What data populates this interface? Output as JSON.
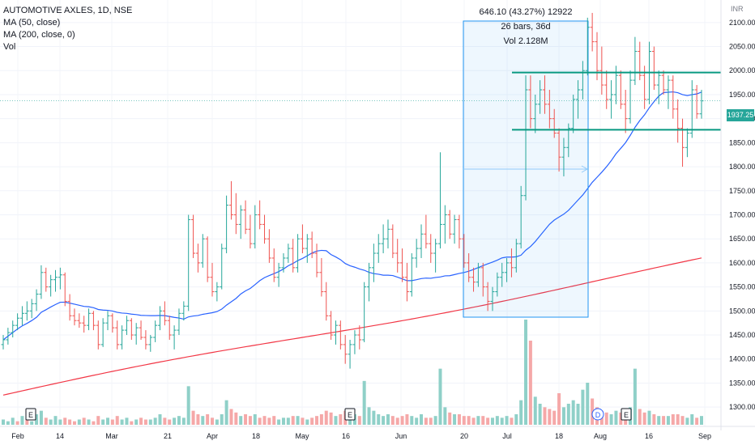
{
  "legend": {
    "symbol": "AUTOMOTIVE AXLES, 1D, NSE",
    "ma50": "MA (50, close)",
    "ma200": "MA (200, close, 0)",
    "vol": "Vol"
  },
  "measure": {
    "line1": "646.10 (43.27%) 12922",
    "line2": "26 bars, 36d",
    "line3": "Vol 2.128M"
  },
  "price_scale": {
    "currency": "INR",
    "last_price": "1937.25",
    "ticks": [
      "2100.00",
      "2050.00",
      "2000.00",
      "1950.00",
      "1900.00",
      "1850.00",
      "1800.00",
      "1750.00",
      "1700.00",
      "1650.00",
      "1600.00",
      "1550.00",
      "1500.00",
      "1450.00",
      "1400.00",
      "1350.00",
      "1300.00"
    ]
  },
  "time_scale": {
    "labels": [
      "Feb",
      "14",
      "Mar",
      "21",
      "Apr",
      "18",
      "May",
      "16",
      "Jun",
      "20",
      "Jul",
      "18",
      "Aug",
      "16",
      "Sep"
    ]
  },
  "markers": [
    "E",
    "E",
    "E",
    "D"
  ],
  "colors": {
    "up": "#26a69a",
    "down": "#ef5350",
    "ma50": "#2962ff",
    "ma200": "#f23645",
    "vol_up": "#8fd0c8",
    "vol_down": "#f5a8a8",
    "hline": "#089981",
    "measure_box": "#2196f3"
  },
  "chart_data": {
    "type": "ohlc",
    "y_range": [
      1275,
      2130
    ],
    "horizontal_lines": [
      1996,
      1877
    ],
    "last_price": 1937.25,
    "ohlc_bars": [
      [
        1430,
        1450,
        1420,
        1440
      ],
      [
        1440,
        1465,
        1430,
        1455
      ],
      [
        1455,
        1480,
        1445,
        1470
      ],
      [
        1470,
        1495,
        1460,
        1485
      ],
      [
        1485,
        1510,
        1470,
        1495
      ],
      [
        1495,
        1520,
        1480,
        1500
      ],
      [
        1500,
        1525,
        1485,
        1515
      ],
      [
        1515,
        1545,
        1500,
        1535
      ],
      [
        1535,
        1595,
        1525,
        1580
      ],
      [
        1580,
        1590,
        1540,
        1550
      ],
      [
        1550,
        1575,
        1530,
        1565
      ],
      [
        1565,
        1585,
        1540,
        1570
      ],
      [
        1570,
        1590,
        1545,
        1575
      ],
      [
        1575,
        1580,
        1510,
        1520
      ],
      [
        1520,
        1535,
        1480,
        1490
      ],
      [
        1490,
        1505,
        1470,
        1480
      ],
      [
        1480,
        1495,
        1465,
        1475
      ],
      [
        1475,
        1490,
        1455,
        1470
      ],
      [
        1470,
        1505,
        1460,
        1495
      ],
      [
        1495,
        1500,
        1460,
        1470
      ],
      [
        1470,
        1480,
        1420,
        1430
      ],
      [
        1430,
        1485,
        1425,
        1475
      ],
      [
        1475,
        1500,
        1460,
        1490
      ],
      [
        1490,
        1495,
        1455,
        1465
      ],
      [
        1465,
        1480,
        1420,
        1430
      ],
      [
        1430,
        1470,
        1420,
        1460
      ],
      [
        1460,
        1490,
        1450,
        1480
      ],
      [
        1480,
        1485,
        1440,
        1450
      ],
      [
        1450,
        1475,
        1430,
        1465
      ],
      [
        1465,
        1480,
        1440,
        1445
      ],
      [
        1445,
        1460,
        1420,
        1430
      ],
      [
        1430,
        1450,
        1415,
        1445
      ],
      [
        1445,
        1480,
        1435,
        1470
      ],
      [
        1470,
        1510,
        1460,
        1500
      ],
      [
        1500,
        1520,
        1470,
        1480
      ],
      [
        1480,
        1490,
        1440,
        1450
      ],
      [
        1450,
        1470,
        1420,
        1460
      ],
      [
        1460,
        1505,
        1450,
        1495
      ],
      [
        1495,
        1520,
        1480,
        1510
      ],
      [
        1510,
        1700,
        1500,
        1690
      ],
      [
        1690,
        1700,
        1610,
        1620
      ],
      [
        1620,
        1640,
        1580,
        1600
      ],
      [
        1600,
        1660,
        1590,
        1650
      ],
      [
        1650,
        1655,
        1560,
        1570
      ],
      [
        1570,
        1600,
        1530,
        1540
      ],
      [
        1540,
        1560,
        1520,
        1550
      ],
      [
        1550,
        1640,
        1545,
        1630
      ],
      [
        1630,
        1740,
        1620,
        1720
      ],
      [
        1720,
        1770,
        1690,
        1700
      ],
      [
        1700,
        1745,
        1660,
        1680
      ],
      [
        1680,
        1720,
        1650,
        1710
      ],
      [
        1710,
        1730,
        1660,
        1670
      ],
      [
        1670,
        1700,
        1630,
        1640
      ],
      [
        1640,
        1720,
        1630,
        1700
      ],
      [
        1700,
        1730,
        1670,
        1680
      ],
      [
        1680,
        1700,
        1640,
        1650
      ],
      [
        1650,
        1670,
        1600,
        1610
      ],
      [
        1610,
        1630,
        1560,
        1570
      ],
      [
        1570,
        1600,
        1550,
        1590
      ],
      [
        1590,
        1620,
        1580,
        1610
      ],
      [
        1610,
        1640,
        1600,
        1630
      ],
      [
        1630,
        1650,
        1580,
        1590
      ],
      [
        1590,
        1660,
        1580,
        1650
      ],
      [
        1650,
        1680,
        1620,
        1630
      ],
      [
        1630,
        1660,
        1600,
        1650
      ],
      [
        1650,
        1665,
        1610,
        1620
      ],
      [
        1620,
        1640,
        1570,
        1580
      ],
      [
        1580,
        1610,
        1530,
        1540
      ],
      [
        1540,
        1560,
        1480,
        1490
      ],
      [
        1490,
        1500,
        1440,
        1450
      ],
      [
        1450,
        1480,
        1430,
        1470
      ],
      [
        1470,
        1480,
        1420,
        1430
      ],
      [
        1430,
        1450,
        1390,
        1410
      ],
      [
        1410,
        1440,
        1380,
        1430
      ],
      [
        1430,
        1460,
        1410,
        1450
      ],
      [
        1450,
        1470,
        1420,
        1440
      ],
      [
        1440,
        1560,
        1435,
        1550
      ],
      [
        1550,
        1600,
        1520,
        1590
      ],
      [
        1590,
        1640,
        1560,
        1620
      ],
      [
        1620,
        1660,
        1600,
        1640
      ],
      [
        1640,
        1680,
        1620,
        1650
      ],
      [
        1650,
        1690,
        1630,
        1670
      ],
      [
        1670,
        1680,
        1610,
        1620
      ],
      [
        1620,
        1650,
        1580,
        1600
      ],
      [
        1600,
        1630,
        1560,
        1570
      ],
      [
        1570,
        1600,
        1520,
        1540
      ],
      [
        1540,
        1620,
        1530,
        1610
      ],
      [
        1610,
        1650,
        1590,
        1630
      ],
      [
        1630,
        1680,
        1610,
        1660
      ],
      [
        1660,
        1700,
        1630,
        1640
      ],
      [
        1640,
        1660,
        1600,
        1620
      ],
      [
        1620,
        1650,
        1580,
        1640
      ],
      [
        1640,
        1830,
        1630,
        1680
      ],
      [
        1680,
        1720,
        1640,
        1700
      ],
      [
        1700,
        1710,
        1650,
        1660
      ],
      [
        1660,
        1700,
        1640,
        1690
      ],
      [
        1690,
        1700,
        1630,
        1650
      ],
      [
        1650,
        1660,
        1590,
        1600
      ],
      [
        1600,
        1620,
        1560,
        1570
      ],
      [
        1570,
        1590,
        1540,
        1560
      ],
      [
        1560,
        1600,
        1550,
        1590
      ],
      [
        1590,
        1600,
        1530,
        1550
      ],
      [
        1550,
        1560,
        1500,
        1520
      ],
      [
        1520,
        1550,
        1500,
        1540
      ],
      [
        1540,
        1580,
        1530,
        1570
      ],
      [
        1570,
        1600,
        1550,
        1580
      ],
      [
        1580,
        1610,
        1560,
        1600
      ],
      [
        1600,
        1630,
        1570,
        1590
      ],
      [
        1590,
        1650,
        1580,
        1640
      ],
      [
        1640,
        1760,
        1630,
        1740
      ],
      [
        1740,
        1990,
        1730,
        1960
      ],
      [
        1960,
        1990,
        1880,
        1900
      ],
      [
        1900,
        1950,
        1870,
        1930
      ],
      [
        1930,
        1980,
        1910,
        1960
      ],
      [
        1960,
        1990,
        1910,
        1930
      ],
      [
        1930,
        1960,
        1880,
        1900
      ],
      [
        1900,
        1920,
        1860,
        1870
      ],
      [
        1870,
        1880,
        1790,
        1820
      ],
      [
        1820,
        1860,
        1780,
        1840
      ],
      [
        1840,
        1890,
        1820,
        1880
      ],
      [
        1880,
        1950,
        1870,
        1940
      ],
      [
        1940,
        1980,
        1900,
        1960
      ],
      [
        1960,
        2020,
        1940,
        2000
      ],
      [
        2000,
        2110,
        1990,
        2090
      ],
      [
        2090,
        2120,
        2040,
        2060
      ],
      [
        2060,
        2080,
        1980,
        2000
      ],
      [
        2000,
        2050,
        1950,
        1970
      ],
      [
        1970,
        2000,
        1920,
        1940
      ],
      [
        1940,
        1980,
        1900,
        1950
      ],
      [
        1950,
        2010,
        1930,
        1990
      ],
      [
        1990,
        2000,
        1920,
        1930
      ],
      [
        1930,
        1960,
        1870,
        1900
      ],
      [
        1900,
        2000,
        1890,
        1980
      ],
      [
        1980,
        2070,
        1970,
        2040
      ],
      [
        2040,
        2060,
        1980,
        1990
      ],
      [
        1990,
        2010,
        1920,
        1940
      ],
      [
        1940,
        2060,
        1930,
        2040
      ],
      [
        2040,
        2050,
        1960,
        1970
      ],
      [
        1970,
        2000,
        1930,
        1990
      ],
      [
        1990,
        2000,
        1950,
        1960
      ],
      [
        1960,
        1990,
        1920,
        1980
      ],
      [
        1980,
        1990,
        1900,
        1920
      ],
      [
        1920,
        1940,
        1850,
        1880
      ],
      [
        1880,
        1900,
        1800,
        1840
      ],
      [
        1840,
        1880,
        1820,
        1870
      ],
      [
        1870,
        1980,
        1860,
        1960
      ],
      [
        1960,
        1970,
        1900,
        1910
      ],
      [
        1910,
        1960,
        1900,
        1937
      ]
    ],
    "volume": [
      [
        3,
        1
      ],
      [
        2,
        1
      ],
      [
        4,
        1
      ],
      [
        2,
        0
      ],
      [
        5,
        1
      ],
      [
        3,
        0
      ],
      [
        2,
        1
      ],
      [
        6,
        1
      ],
      [
        8,
        1
      ],
      [
        4,
        0
      ],
      [
        3,
        1
      ],
      [
        5,
        1
      ],
      [
        3,
        1
      ],
      [
        4,
        0
      ],
      [
        3,
        0
      ],
      [
        2,
        0
      ],
      [
        3,
        1
      ],
      [
        4,
        0
      ],
      [
        3,
        1
      ],
      [
        2,
        0
      ],
      [
        5,
        0
      ],
      [
        3,
        1
      ],
      [
        4,
        1
      ],
      [
        3,
        0
      ],
      [
        5,
        0
      ],
      [
        3,
        1
      ],
      [
        4,
        1
      ],
      [
        2,
        0
      ],
      [
        3,
        1
      ],
      [
        4,
        0
      ],
      [
        3,
        0
      ],
      [
        3,
        1
      ],
      [
        4,
        1
      ],
      [
        6,
        1
      ],
      [
        4,
        0
      ],
      [
        3,
        0
      ],
      [
        4,
        1
      ],
      [
        5,
        1
      ],
      [
        4,
        1
      ],
      [
        22,
        1
      ],
      [
        8,
        0
      ],
      [
        6,
        0
      ],
      [
        5,
        1
      ],
      [
        6,
        0
      ],
      [
        4,
        0
      ],
      [
        3,
        1
      ],
      [
        6,
        1
      ],
      [
        14,
        1
      ],
      [
        9,
        0
      ],
      [
        7,
        0
      ],
      [
        5,
        1
      ],
      [
        6,
        0
      ],
      [
        5,
        0
      ],
      [
        6,
        1
      ],
      [
        4,
        0
      ],
      [
        5,
        0
      ],
      [
        4,
        0
      ],
      [
        5,
        0
      ],
      [
        3,
        1
      ],
      [
        4,
        1
      ],
      [
        4,
        1
      ],
      [
        5,
        0
      ],
      [
        5,
        1
      ],
      [
        4,
        0
      ],
      [
        3,
        1
      ],
      [
        4,
        0
      ],
      [
        5,
        0
      ],
      [
        6,
        0
      ],
      [
        8,
        0
      ],
      [
        7,
        0
      ],
      [
        5,
        1
      ],
      [
        6,
        0
      ],
      [
        8,
        0
      ],
      [
        7,
        1
      ],
      [
        6,
        1
      ],
      [
        5,
        0
      ],
      [
        25,
        1
      ],
      [
        10,
        1
      ],
      [
        8,
        1
      ],
      [
        6,
        1
      ],
      [
        5,
        1
      ],
      [
        6,
        1
      ],
      [
        5,
        0
      ],
      [
        4,
        0
      ],
      [
        5,
        0
      ],
      [
        6,
        0
      ],
      [
        5,
        1
      ],
      [
        4,
        1
      ],
      [
        6,
        1
      ],
      [
        4,
        0
      ],
      [
        4,
        0
      ],
      [
        5,
        1
      ],
      [
        32,
        1
      ],
      [
        10,
        1
      ],
      [
        7,
        0
      ],
      [
        6,
        1
      ],
      [
        6,
        0
      ],
      [
        5,
        0
      ],
      [
        5,
        0
      ],
      [
        4,
        0
      ],
      [
        5,
        1
      ],
      [
        5,
        0
      ],
      [
        4,
        0
      ],
      [
        4,
        1
      ],
      [
        5,
        1
      ],
      [
        4,
        1
      ],
      [
        5,
        1
      ],
      [
        4,
        0
      ],
      [
        6,
        1
      ],
      [
        14,
        1
      ],
      [
        60,
        1
      ],
      [
        48,
        0
      ],
      [
        16,
        1
      ],
      [
        12,
        1
      ],
      [
        10,
        0
      ],
      [
        9,
        0
      ],
      [
        8,
        0
      ],
      [
        18,
        0
      ],
      [
        10,
        1
      ],
      [
        12,
        1
      ],
      [
        14,
        1
      ],
      [
        12,
        1
      ],
      [
        20,
        1
      ],
      [
        24,
        1
      ],
      [
        15,
        0
      ],
      [
        10,
        0
      ],
      [
        8,
        0
      ],
      [
        7,
        0
      ],
      [
        6,
        1
      ],
      [
        8,
        1
      ],
      [
        7,
        0
      ],
      [
        6,
        0
      ],
      [
        10,
        1
      ],
      [
        32,
        1
      ],
      [
        9,
        0
      ],
      [
        7,
        0
      ],
      [
        8,
        1
      ],
      [
        6,
        0
      ],
      [
        5,
        1
      ],
      [
        5,
        0
      ],
      [
        5,
        1
      ],
      [
        6,
        0
      ],
      [
        6,
        0
      ],
      [
        5,
        0
      ],
      [
        4,
        1
      ],
      [
        6,
        1
      ],
      [
        4,
        0
      ],
      [
        5,
        1
      ]
    ]
  }
}
